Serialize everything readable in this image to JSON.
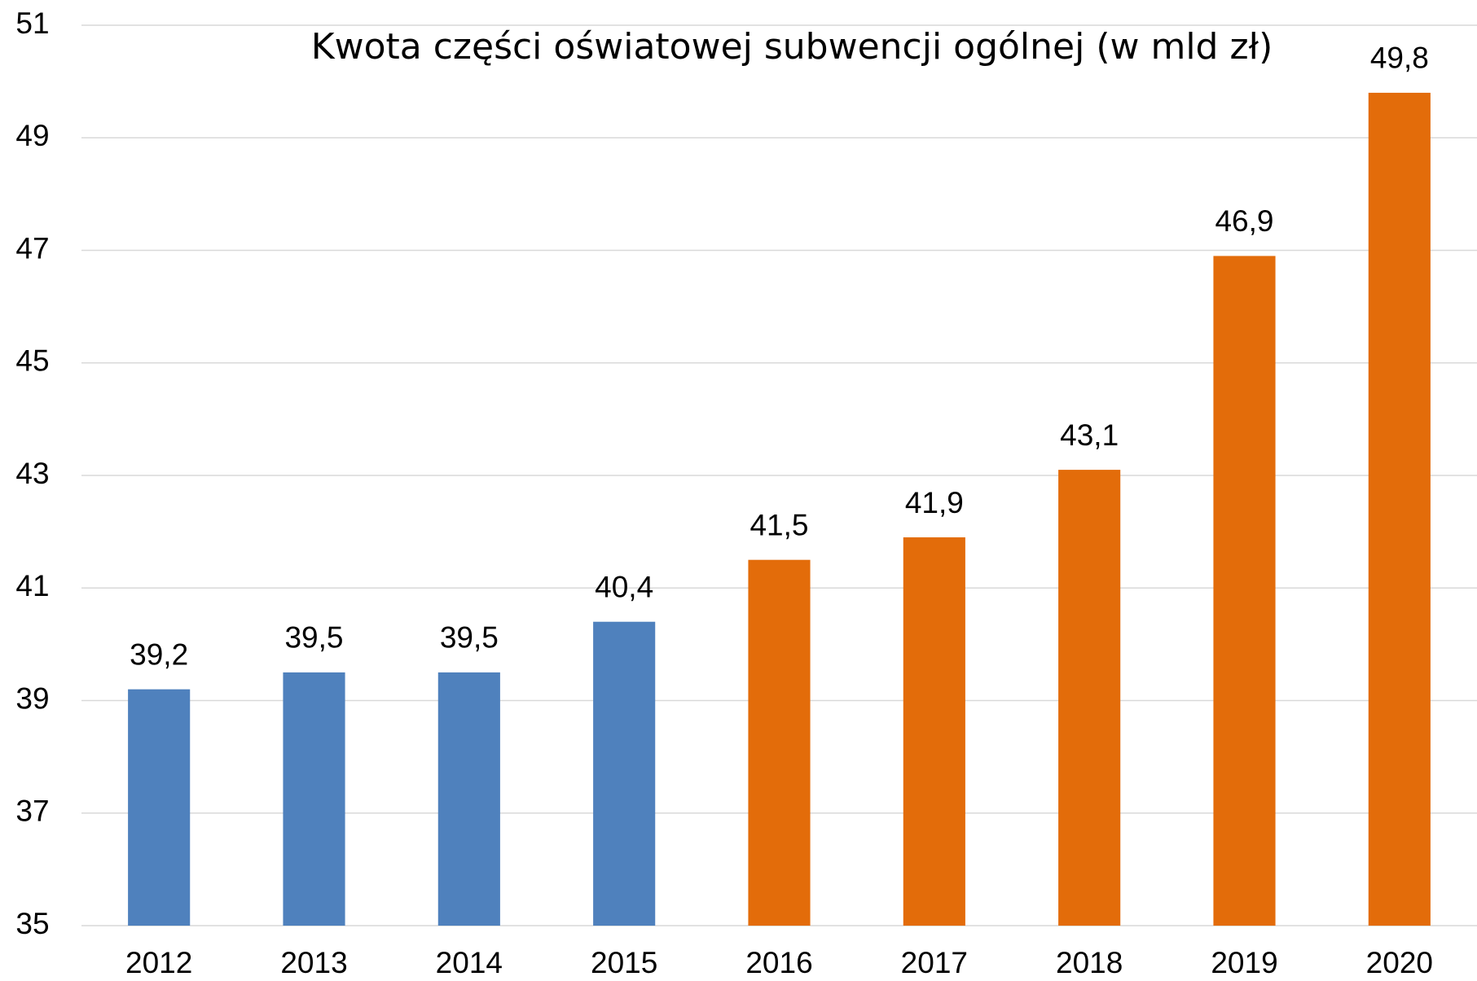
{
  "chart_data": {
    "type": "bar",
    "title": "Kwota części oświatowej subwencji ogólnej (w mld zł)",
    "categories": [
      "2012",
      "2013",
      "2014",
      "2015",
      "2016",
      "2017",
      "2018",
      "2019",
      "2020"
    ],
    "values": [
      39.2,
      39.5,
      39.5,
      40.4,
      41.5,
      41.9,
      43.1,
      46.9,
      49.8
    ],
    "value_labels": [
      "39,2",
      "39,5",
      "39,5",
      "40,4",
      "41,5",
      "41,9",
      "43,1",
      "46,9",
      "49,8"
    ],
    "colors": [
      "#4f81bd",
      "#4f81bd",
      "#4f81bd",
      "#4f81bd",
      "#e36c0a",
      "#e36c0a",
      "#e36c0a",
      "#e36c0a",
      "#e36c0a"
    ],
    "ylim": [
      35,
      51
    ],
    "yticks": [
      35,
      37,
      39,
      41,
      43,
      45,
      47,
      49,
      51
    ],
    "grid": true
  }
}
